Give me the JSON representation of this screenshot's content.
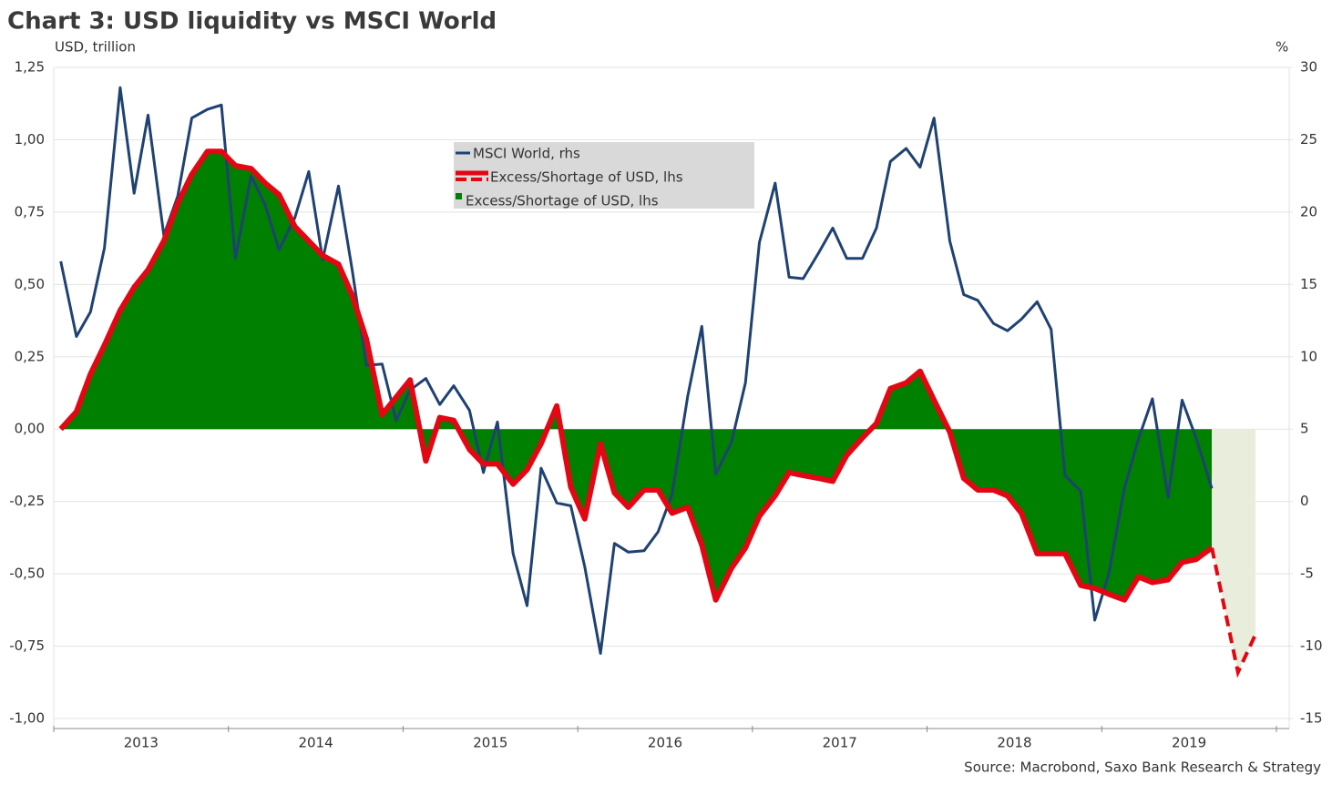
{
  "chart_data": {
    "type": "line-area",
    "title": "Chart 3: USD liquidity vs MSCI World",
    "ylabel": "USD, trillion",
    "y2label": "%",
    "source": "Source: Macrobond, Saxo Bank Research & Strategy",
    "xlim": [
      2013,
      2020
    ],
    "xticks": [
      2013,
      2014,
      2015,
      2016,
      2017,
      2018,
      2019
    ],
    "ylim": [
      -1.0,
      1.25
    ],
    "yticks": [
      {
        "value": 1.25,
        "label": "1,25"
      },
      {
        "value": 1.0,
        "label": "1,00"
      },
      {
        "value": 0.75,
        "label": "0,75"
      },
      {
        "value": 0.5,
        "label": "0,50"
      },
      {
        "value": 0.25,
        "label": "0,25"
      },
      {
        "value": 0,
        "label": "0,00"
      },
      {
        "value": -0.25,
        "label": "-0,25"
      },
      {
        "value": -0.5,
        "label": "-0,50"
      },
      {
        "value": -0.75,
        "label": "-0,75"
      },
      {
        "value": -1.0,
        "label": "-1,00"
      }
    ],
    "y2lim": [
      -15,
      30
    ],
    "y2ticks": [
      30,
      25,
      20,
      15,
      10,
      5,
      0,
      -5,
      -10,
      -15
    ],
    "grid": true,
    "x": [
      2013.04,
      2013.13,
      2013.21,
      2013.29,
      2013.38,
      2013.46,
      2013.54,
      2013.63,
      2013.71,
      2013.79,
      2013.88,
      2013.96,
      2014.04,
      2014.13,
      2014.21,
      2014.29,
      2014.38,
      2014.46,
      2014.54,
      2014.63,
      2014.71,
      2014.79,
      2014.88,
      2014.96,
      2015.04,
      2015.13,
      2015.21,
      2015.29,
      2015.38,
      2015.46,
      2015.54,
      2015.63,
      2015.71,
      2015.79,
      2015.88,
      2015.96,
      2016.04,
      2016.13,
      2016.21,
      2016.29,
      2016.38,
      2016.46,
      2016.54,
      2016.63,
      2016.71,
      2016.79,
      2016.88,
      2016.96,
      2017.04,
      2017.13,
      2017.21,
      2017.29,
      2017.38,
      2017.46,
      2017.54,
      2017.63,
      2017.71,
      2017.79,
      2017.88,
      2017.96,
      2018.04,
      2018.13,
      2018.21,
      2018.29,
      2018.38,
      2018.46,
      2018.54,
      2018.63,
      2018.71,
      2018.79,
      2018.88,
      2018.96,
      2019.04,
      2019.13,
      2019.21,
      2019.29,
      2019.38,
      2019.46,
      2019.54,
      2019.63
    ],
    "series": [
      {
        "name": "MSCI World, rhs",
        "color": "#1f4272",
        "kind": "line",
        "axis": "y2",
        "values": [
          16.6,
          11.4,
          13.1,
          17.5,
          28.6,
          21.3,
          26.7,
          18.4,
          21.1,
          26.5,
          27.1,
          27.4,
          16.8,
          22.5,
          20.5,
          17.4,
          19.6,
          22.8,
          16.7,
          21.8,
          15.9,
          9.4,
          9.5,
          5.6,
          7.7,
          8.5,
          6.7,
          8.0,
          6.3,
          2.0,
          5.5,
          -3.6,
          -7.2,
          2.3,
          -0.1,
          -0.3,
          -4.5,
          -10.5,
          -2.9,
          -3.5,
          -3.4,
          -2.1,
          0.5,
          7.3,
          12.1,
          1.9,
          4.1,
          8.2,
          17.9,
          22.0,
          15.5,
          15.4,
          17.2,
          18.9,
          16.8,
          16.8,
          18.9,
          23.5,
          24.4,
          23.1,
          26.5,
          18.0,
          14.3,
          13.9,
          12.3,
          11.8,
          12.6,
          13.8,
          11.9,
          1.8,
          0.7,
          -8.2,
          -5.0,
          0.9,
          4.3,
          7.1,
          0.3,
          7.0,
          4.4,
          0.9
        ]
      },
      {
        "name": "Excess/Shortage of USD, lhs",
        "color": "#e30613",
        "kind": "line",
        "values": [
          0.0,
          0.06,
          0.19,
          0.29,
          0.41,
          0.49,
          0.55,
          0.65,
          0.78,
          0.88,
          0.96,
          0.96,
          0.91,
          0.9,
          0.85,
          0.81,
          0.7,
          0.65,
          0.6,
          0.57,
          0.46,
          0.31,
          0.05,
          0.11,
          0.17,
          -0.11,
          0.04,
          0.03,
          -0.07,
          -0.12,
          -0.12,
          -0.19,
          -0.14,
          -0.05,
          0.08,
          -0.2,
          -0.31,
          -0.05,
          -0.22,
          -0.27,
          -0.21,
          -0.21,
          -0.29,
          -0.27,
          -0.4,
          -0.59,
          -0.48,
          -0.41,
          -0.3,
          -0.23,
          -0.15,
          -0.16,
          -0.17,
          -0.18,
          -0.09,
          -0.03,
          0.02,
          0.14,
          0.16,
          0.2,
          0.1,
          -0.01,
          -0.17,
          -0.21,
          -0.21,
          -0.23,
          -0.29,
          -0.43,
          -0.43,
          -0.43,
          -0.54,
          -0.55,
          -0.57,
          -0.59,
          -0.51,
          -0.53,
          -0.52,
          -0.46,
          -0.45,
          -0.41
        ],
        "forecast_x": [
          2019.78,
          2019.88
        ],
        "forecast_values": [
          -0.84,
          -0.71
        ]
      },
      {
        "name": "Excess/Shortage of USD, lhs",
        "color": "#008000",
        "kind": "area",
        "forecast_color": "#e8eedb",
        "values": [
          0.0,
          0.06,
          0.19,
          0.29,
          0.41,
          0.49,
          0.55,
          0.65,
          0.78,
          0.88,
          0.96,
          0.96,
          0.91,
          0.9,
          0.85,
          0.81,
          0.7,
          0.65,
          0.6,
          0.57,
          0.46,
          0.31,
          0.05,
          0.11,
          0.17,
          -0.11,
          0.04,
          0.03,
          -0.07,
          -0.12,
          -0.12,
          -0.19,
          -0.14,
          -0.05,
          0.08,
          -0.2,
          -0.31,
          -0.05,
          -0.22,
          -0.27,
          -0.21,
          -0.21,
          -0.29,
          -0.27,
          -0.4,
          -0.59,
          -0.48,
          -0.41,
          -0.3,
          -0.23,
          -0.15,
          -0.16,
          -0.17,
          -0.18,
          -0.09,
          -0.03,
          0.02,
          0.14,
          0.16,
          0.2,
          0.1,
          -0.01,
          -0.17,
          -0.21,
          -0.21,
          -0.23,
          -0.29,
          -0.43,
          -0.43,
          -0.43,
          -0.54,
          -0.55,
          -0.57,
          -0.59,
          -0.51,
          -0.53,
          -0.52,
          -0.46,
          -0.45,
          -0.41
        ],
        "forecast_x": [
          2019.78,
          2019.88
        ],
        "forecast_values": [
          -0.84,
          -0.71
        ]
      }
    ]
  }
}
